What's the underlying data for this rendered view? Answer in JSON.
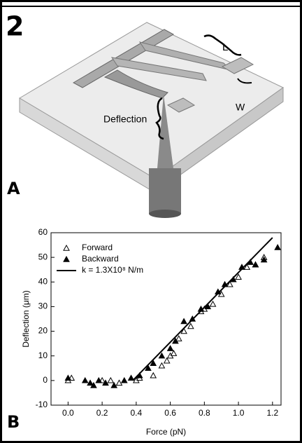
{
  "figure_number": "2",
  "diagram": {
    "panel_label": "A",
    "length_label": "L",
    "width_label": "W",
    "deflection_label": "Deflection"
  },
  "panel_b_label": "B",
  "chart_data": {
    "type": "scatter",
    "xlabel": "Force (pN)",
    "ylabel": "Deflection (μm)",
    "xlim": [
      -0.1,
      1.25
    ],
    "ylim": [
      -10,
      60
    ],
    "xticks": [
      {
        "value": 0,
        "label": "0.0"
      },
      {
        "value": 0.2,
        "label": "0.2"
      },
      {
        "value": 0.4,
        "label": "0.4"
      },
      {
        "value": 0.6,
        "label": "0.6"
      },
      {
        "value": 0.8,
        "label": "0.8"
      },
      {
        "value": 1,
        "label": "1.0"
      },
      {
        "value": 1.2,
        "label": "1.2"
      }
    ],
    "yticks": [
      -10,
      0,
      10,
      20,
      30,
      40,
      50,
      60
    ],
    "legend": "upper left",
    "series": [
      {
        "name": "Forward",
        "color": "#000000",
        "marker": "hollow-triangle",
        "x": [
          0.0,
          0.02,
          0.2,
          0.25,
          0.3,
          0.4,
          0.42,
          0.5,
          0.55,
          0.58,
          0.6,
          0.62,
          0.65,
          0.68,
          0.72,
          0.78,
          0.8,
          0.85,
          0.9,
          0.95,
          1.0,
          1.05,
          1.1,
          1.15
        ],
        "values": [
          0,
          1,
          0,
          0,
          -1,
          0,
          1,
          2,
          6,
          8,
          10,
          11,
          17,
          20,
          22,
          28,
          29,
          31,
          35,
          39,
          42,
          46,
          47,
          50
        ]
      },
      {
        "name": "Backward",
        "color": "#000000",
        "marker": "filled-triangle",
        "x": [
          0.0,
          0.1,
          0.13,
          0.15,
          0.18,
          0.22,
          0.27,
          0.33,
          0.37,
          0.42,
          0.47,
          0.5,
          0.55,
          0.6,
          0.63,
          0.68,
          0.73,
          0.78,
          0.82,
          0.88,
          0.92,
          0.97,
          1.02,
          1.07,
          1.1,
          1.15,
          1.23
        ],
        "values": [
          1,
          0,
          -1,
          -2,
          0,
          -1,
          -2,
          0,
          1,
          2,
          5,
          7,
          10,
          13,
          16,
          24,
          25,
          29,
          30,
          36,
          39,
          41,
          46,
          48,
          47,
          49,
          54
        ]
      },
      {
        "name": "k = 1.3X10⁸ N/m",
        "color": "#000000",
        "marker": "line",
        "x": [
          0.38,
          1.2
        ],
        "values": [
          0,
          58
        ]
      }
    ]
  }
}
